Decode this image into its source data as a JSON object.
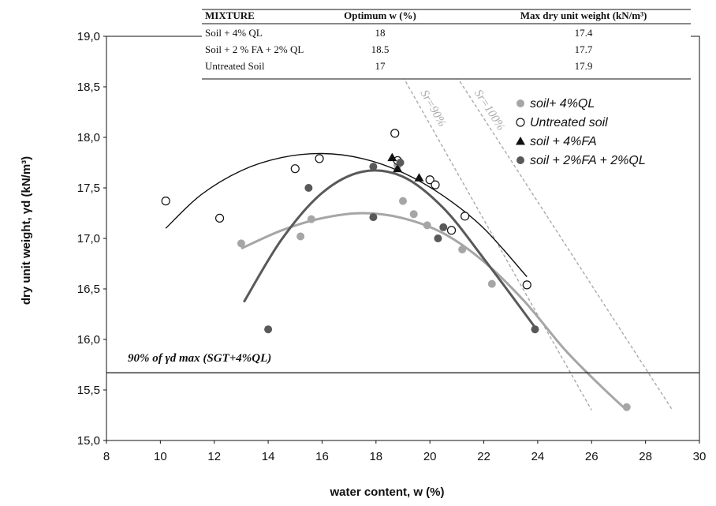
{
  "chart_data": {
    "type": "scatter",
    "xlabel": "water content, w (%)",
    "ylabel": "dry unit weight, γd  (kN/m³)",
    "xlim": [
      8,
      30
    ],
    "ylim": [
      15.0,
      19.0
    ],
    "x_ticks": [
      "8",
      "10",
      "12",
      "14",
      "16",
      "18",
      "20",
      "22",
      "24",
      "26",
      "28",
      "30"
    ],
    "y_ticks": [
      "15,0",
      "15,5",
      "16,0",
      "16,5",
      "17,0",
      "17,5",
      "18,0",
      "18,5",
      "19,0"
    ],
    "legend_position": "top-right",
    "series": [
      {
        "name": "soil+ 4%QL",
        "marker": "filled-circle",
        "color": "#a6a6a6",
        "points": [
          [
            13.0,
            16.95
          ],
          [
            15.2,
            17.02
          ],
          [
            15.6,
            17.19
          ],
          [
            18.8,
            17.72
          ],
          [
            19.0,
            17.37
          ],
          [
            19.4,
            17.24
          ],
          [
            19.9,
            17.13
          ],
          [
            21.2,
            16.89
          ],
          [
            22.3,
            16.55
          ],
          [
            27.3,
            15.33
          ]
        ],
        "fit": [
          [
            13.0,
            16.9
          ],
          [
            14.5,
            17.08
          ],
          [
            16.0,
            17.2
          ],
          [
            17.5,
            17.25
          ],
          [
            19.0,
            17.2
          ],
          [
            20.5,
            17.05
          ],
          [
            22.0,
            16.77
          ],
          [
            23.5,
            16.38
          ],
          [
            25.0,
            15.9
          ],
          [
            26.3,
            15.55
          ],
          [
            27.3,
            15.3
          ]
        ]
      },
      {
        "name": "Untreated soil",
        "marker": "open-circle",
        "color": "#111111",
        "points": [
          [
            10.2,
            17.37
          ],
          [
            12.2,
            17.2
          ],
          [
            15.0,
            17.69
          ],
          [
            15.9,
            17.79
          ],
          [
            18.7,
            18.04
          ],
          [
            18.8,
            17.77
          ],
          [
            20.0,
            17.58
          ],
          [
            20.2,
            17.53
          ],
          [
            20.8,
            17.08
          ],
          [
            21.3,
            17.22
          ],
          [
            23.6,
            16.54
          ]
        ],
        "fit": [
          [
            10.2,
            17.1
          ],
          [
            11.5,
            17.43
          ],
          [
            13.0,
            17.67
          ],
          [
            14.5,
            17.8
          ],
          [
            16.0,
            17.84
          ],
          [
            17.5,
            17.79
          ],
          [
            19.0,
            17.65
          ],
          [
            20.5,
            17.42
          ],
          [
            22.0,
            17.1
          ],
          [
            23.6,
            16.62
          ]
        ]
      },
      {
        "name": "soil + 4%FA",
        "marker": "filled-triangle",
        "color": "#111111",
        "points": [
          [
            18.6,
            17.8
          ],
          [
            18.8,
            17.69
          ],
          [
            19.6,
            17.6
          ]
        ]
      },
      {
        "name": "soil + 2%FA + 2%QL",
        "marker": "filled-circle",
        "color": "#595959",
        "points": [
          [
            14.0,
            16.1
          ],
          [
            15.5,
            17.5
          ],
          [
            17.9,
            17.71
          ],
          [
            17.9,
            17.21
          ],
          [
            18.9,
            17.75
          ],
          [
            20.3,
            17.0
          ],
          [
            20.5,
            17.11
          ],
          [
            23.9,
            16.1
          ]
        ],
        "fit": [
          [
            13.1,
            16.37
          ],
          [
            14.5,
            16.99
          ],
          [
            16.0,
            17.45
          ],
          [
            17.5,
            17.66
          ],
          [
            19.0,
            17.61
          ],
          [
            20.5,
            17.3
          ],
          [
            22.0,
            16.8
          ],
          [
            23.9,
            16.12
          ]
        ]
      }
    ],
    "saturation_lines": [
      {
        "label": "Sr=90%",
        "points": [
          [
            19.0,
            18.6
          ],
          [
            26.0,
            15.3
          ]
        ]
      },
      {
        "label": "Sr=100%",
        "points": [
          [
            21.0,
            18.6
          ],
          [
            29.0,
            15.3
          ]
        ]
      }
    ],
    "reference_line": {
      "label": "90% of γd max (SGT+4%QL)",
      "y": 15.67
    },
    "table": {
      "headers": [
        "MIXTURE",
        "Optimum w (%)",
        "Max dry unit weight (kN/m³)"
      ],
      "rows": [
        [
          "Soil + 4% QL",
          "18",
          "17.4"
        ],
        [
          "Soil + 2 % FA + 2% QL",
          "18.5",
          "17.7"
        ],
        [
          "Untreated Soil",
          "17",
          "17.9"
        ]
      ]
    }
  },
  "colors": {
    "light_gray": "#a6a6a6",
    "dark_gray": "#595959",
    "black": "#111111",
    "sat_line": "#aaaaaa"
  }
}
